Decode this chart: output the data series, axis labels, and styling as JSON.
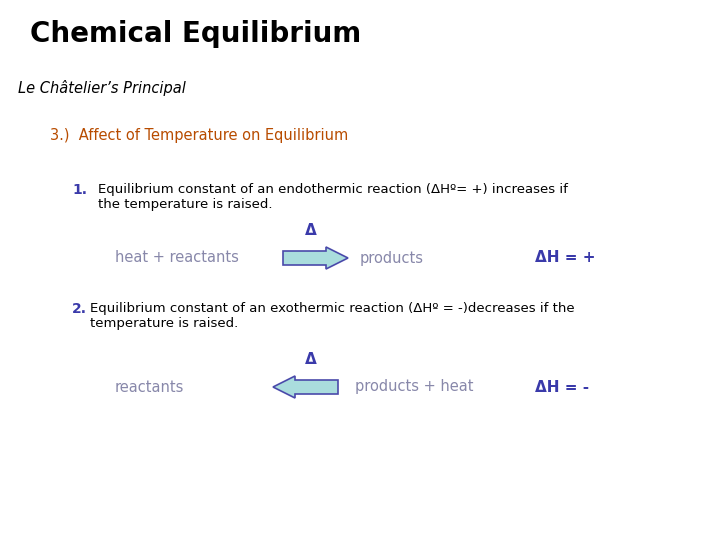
{
  "title": "Chemical Equilibrium",
  "subtitle": "Le Châtelier’s Principal",
  "section": "3.)  Affect of Temperature on Equilibrium",
  "point1_num": "1.",
  "point1_text": "Equilibrium constant of an endothermic reaction (ΔHº= +) increases if\nthe temperature is raised.",
  "eq1_left": "heat + reactants",
  "eq1_right": "products",
  "eq1_dh": "ΔH = +",
  "point2_num": "2.",
  "point2_text": "Equilibrium constant of an exothermic reaction (ΔHº = -)decreases if the\ntemperature is raised.",
  "eq2_left": "reactants",
  "eq2_right": "products + heat",
  "eq2_dh": "ΔH = -",
  "title_color": "#000000",
  "subtitle_color": "#000000",
  "section_color": "#b84c00",
  "point_num_color": "#3a3aaa",
  "point_text_color": "#000000",
  "eq_text_color": "#8888aa",
  "eq_dh_color": "#3a3aaa",
  "arrow_fill": "#aadddd",
  "arrow_edge": "#4a4aaa",
  "delta_color": "#3a3aaa",
  "bg_color": "#ffffff"
}
